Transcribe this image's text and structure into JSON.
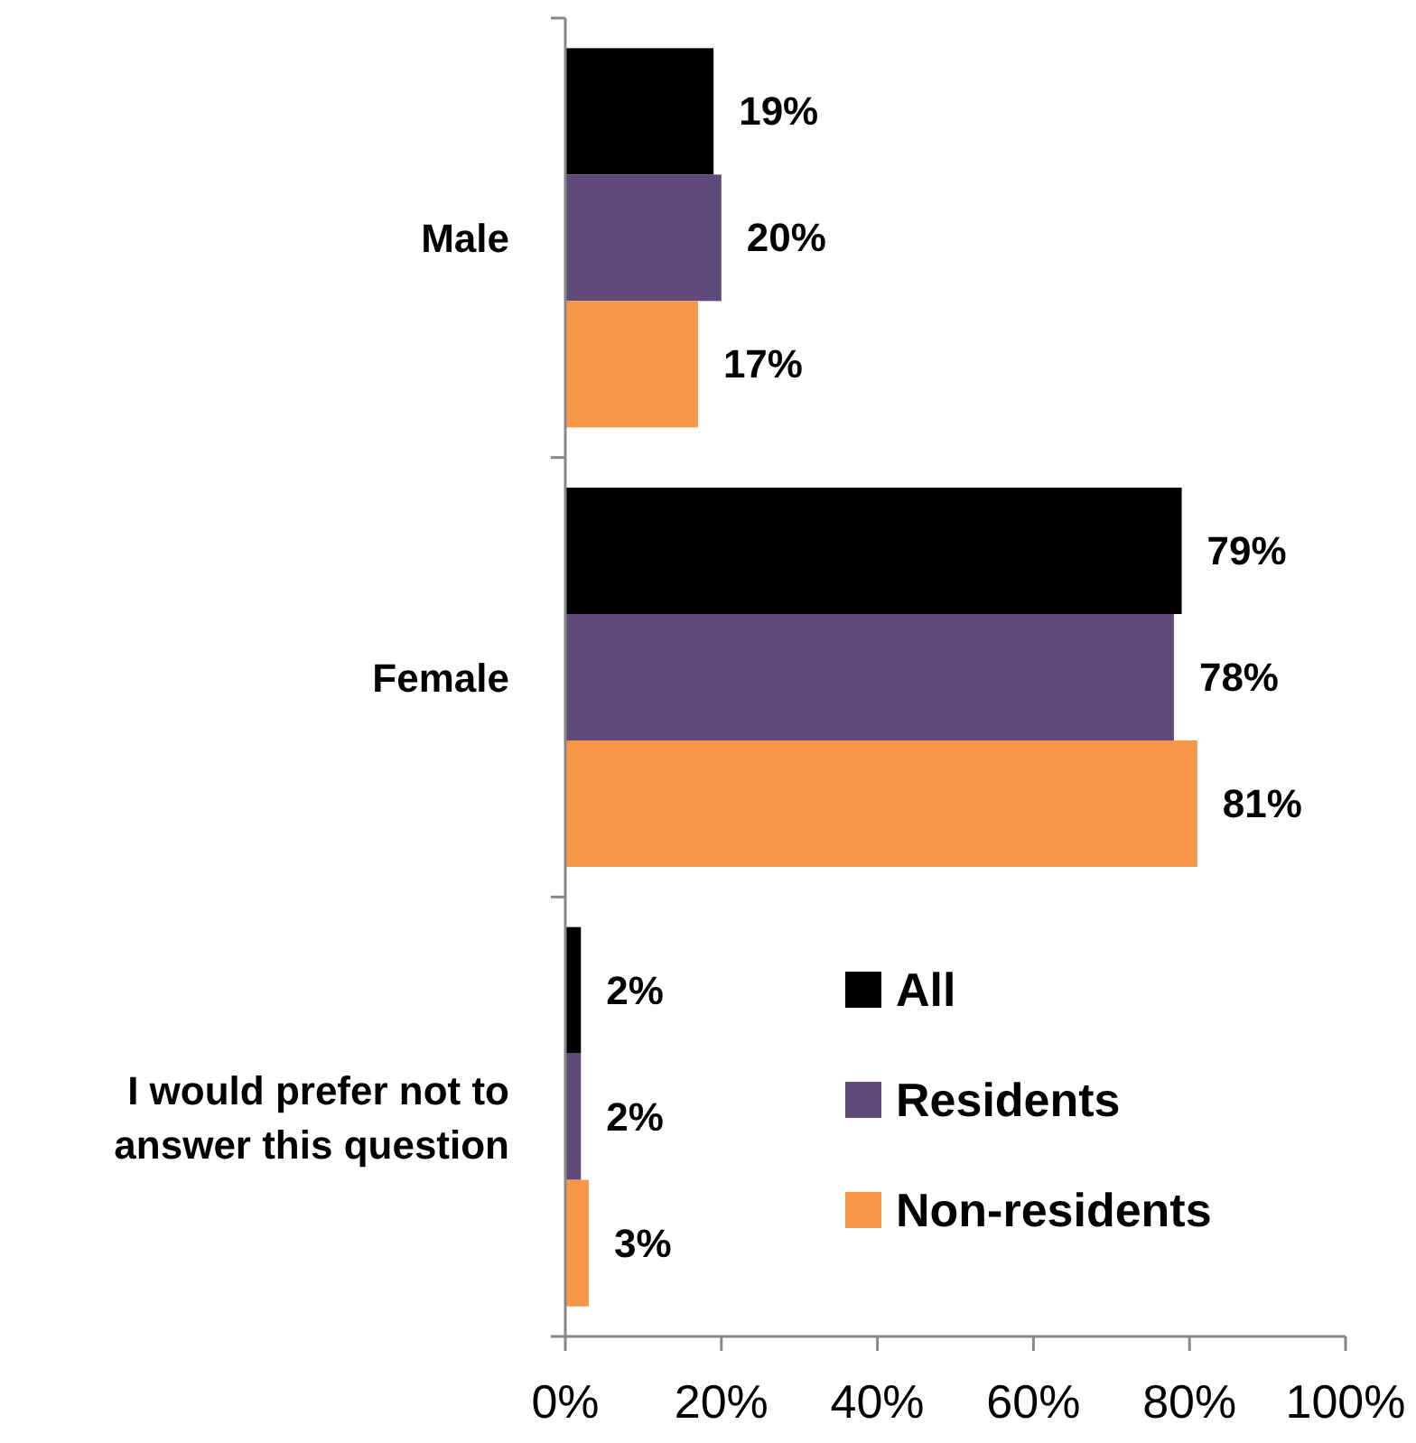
{
  "chart_data": {
    "type": "bar",
    "orientation": "horizontal",
    "categories": [
      "Male",
      "Female",
      "I would prefer not to answer this question"
    ],
    "series": [
      {
        "name": "All",
        "color": "#000000",
        "values": [
          19,
          79,
          2
        ],
        "value_labels": [
          "19%",
          "79%",
          "2%"
        ]
      },
      {
        "name": "Residents",
        "color": "#604a7b",
        "values": [
          20,
          78,
          2
        ],
        "value_labels": [
          "20%",
          "78%",
          "2%"
        ]
      },
      {
        "name": "Non-residents",
        "color": "#f79646",
        "values": [
          17,
          81,
          3
        ],
        "value_labels": [
          "17%",
          "81%",
          "3%"
        ]
      }
    ],
    "xlim": [
      0,
      100
    ],
    "xticks": [
      {
        "value": 0,
        "label": "0%"
      },
      {
        "value": 20,
        "label": "20%"
      },
      {
        "value": 40,
        "label": "40%"
      },
      {
        "value": 60,
        "label": "60%"
      },
      {
        "value": 80,
        "label": "80%"
      },
      {
        "value": 100,
        "label": "100%"
      }
    ],
    "grid": false,
    "legend": "bottom right"
  }
}
